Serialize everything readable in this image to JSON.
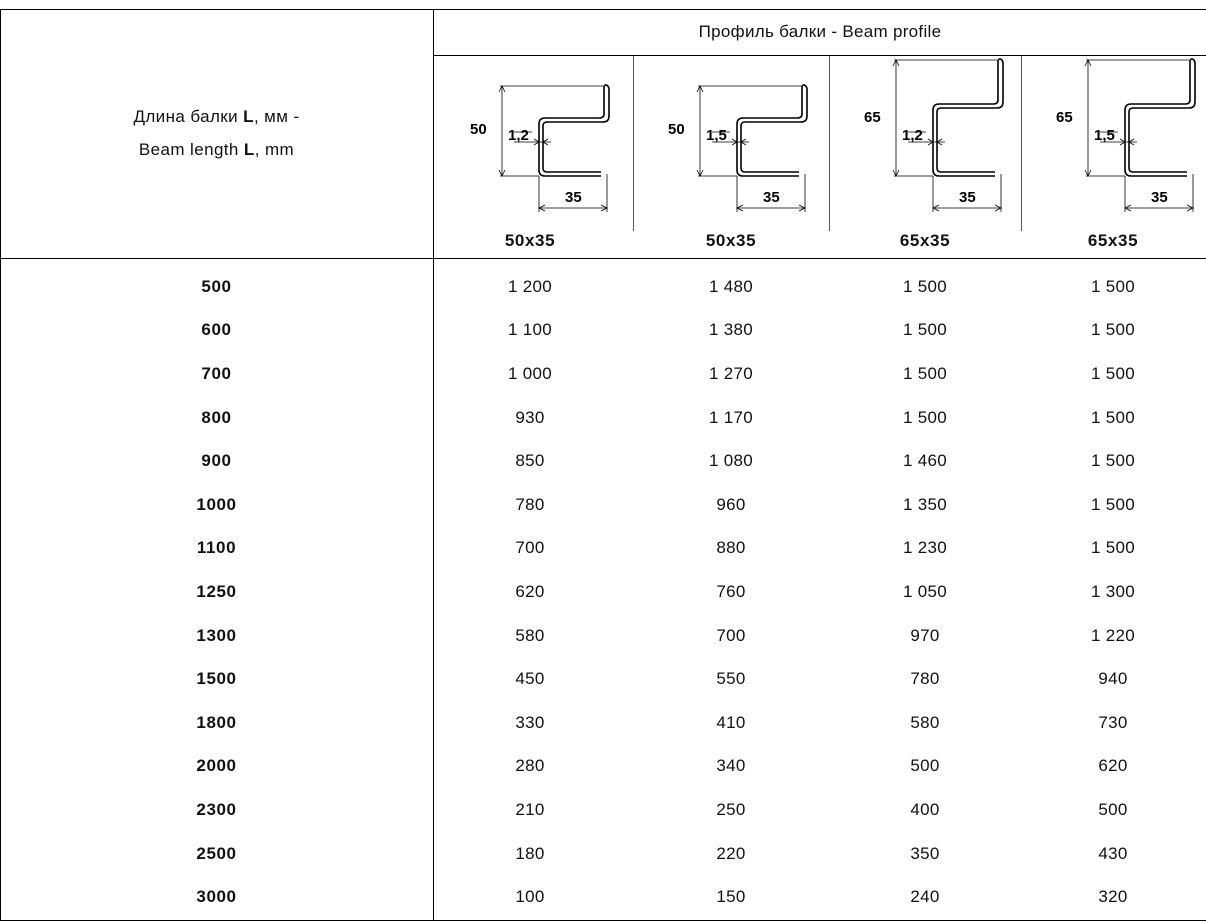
{
  "header": {
    "left_line1_pre": "Длина балки ",
    "left_line1_bold": "L",
    "left_line1_post": ", мм -",
    "left_line2_pre": "Beam length ",
    "left_line2_bold": "L",
    "left_line2_post": ", mm",
    "profile_title": "Профиль балки - Beam profile"
  },
  "profiles": [
    {
      "height": "50",
      "thickness": "1,2",
      "width": "35",
      "label": "50x35"
    },
    {
      "height": "50",
      "thickness": "1,5",
      "width": "35",
      "label": "50x35"
    },
    {
      "height": "65",
      "thickness": "1,2",
      "width": "35",
      "label": "65x35"
    },
    {
      "height": "65",
      "thickness": "1,5",
      "width": "35",
      "label": "65x35"
    }
  ],
  "rows": [
    {
      "length": "500",
      "values": [
        "1 200",
        "1 480",
        "1 500",
        "1 500"
      ]
    },
    {
      "length": "600",
      "values": [
        "1 100",
        "1 380",
        "1 500",
        "1 500"
      ]
    },
    {
      "length": "700",
      "values": [
        "1 000",
        "1 270",
        "1 500",
        "1 500"
      ]
    },
    {
      "length": "800",
      "values": [
        "930",
        "1 170",
        "1 500",
        "1 500"
      ]
    },
    {
      "length": "900",
      "values": [
        "850",
        "1 080",
        "1 460",
        "1 500"
      ]
    },
    {
      "length": "1000",
      "values": [
        "780",
        "960",
        "1 350",
        "1 500"
      ]
    },
    {
      "length": "1100",
      "values": [
        "700",
        "880",
        "1 230",
        "1 500"
      ]
    },
    {
      "length": "1250",
      "values": [
        "620",
        "760",
        "1 050",
        "1 300"
      ]
    },
    {
      "length": "1300",
      "values": [
        "580",
        "700",
        "970",
        "1 220"
      ]
    },
    {
      "length": "1500",
      "values": [
        "450",
        "550",
        "780",
        "940"
      ]
    },
    {
      "length": "1800",
      "values": [
        "330",
        "410",
        "580",
        "730"
      ]
    },
    {
      "length": "2000",
      "values": [
        "280",
        "340",
        "500",
        "620"
      ]
    },
    {
      "length": "2300",
      "values": [
        "210",
        "250",
        "400",
        "500"
      ]
    },
    {
      "length": "2500",
      "values": [
        "180",
        "220",
        "350",
        "430"
      ]
    },
    {
      "length": "3000",
      "values": [
        "100",
        "150",
        "240",
        "320"
      ]
    }
  ]
}
